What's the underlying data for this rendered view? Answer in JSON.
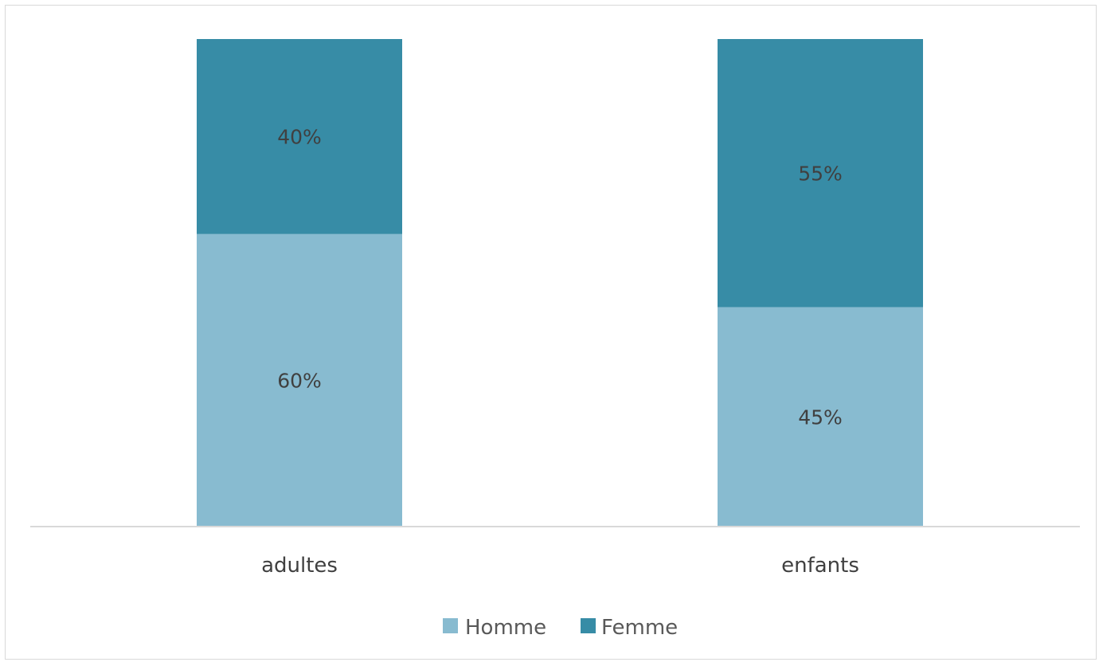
{
  "chart_data": {
    "type": "bar",
    "stacked": true,
    "categories": [
      "adultes",
      "enfants"
    ],
    "series": [
      {
        "name": "Homme",
        "values": [
          60,
          45
        ],
        "labels": [
          "60%",
          "45%"
        ],
        "color": "#88bbd0"
      },
      {
        "name": "Femme",
        "values": [
          40,
          55
        ],
        "labels": [
          "40%",
          "55%"
        ],
        "color": "#378ca6"
      }
    ],
    "ylim": [
      0,
      100
    ],
    "grid": false,
    "legend": "bottom",
    "data_labels": true
  }
}
